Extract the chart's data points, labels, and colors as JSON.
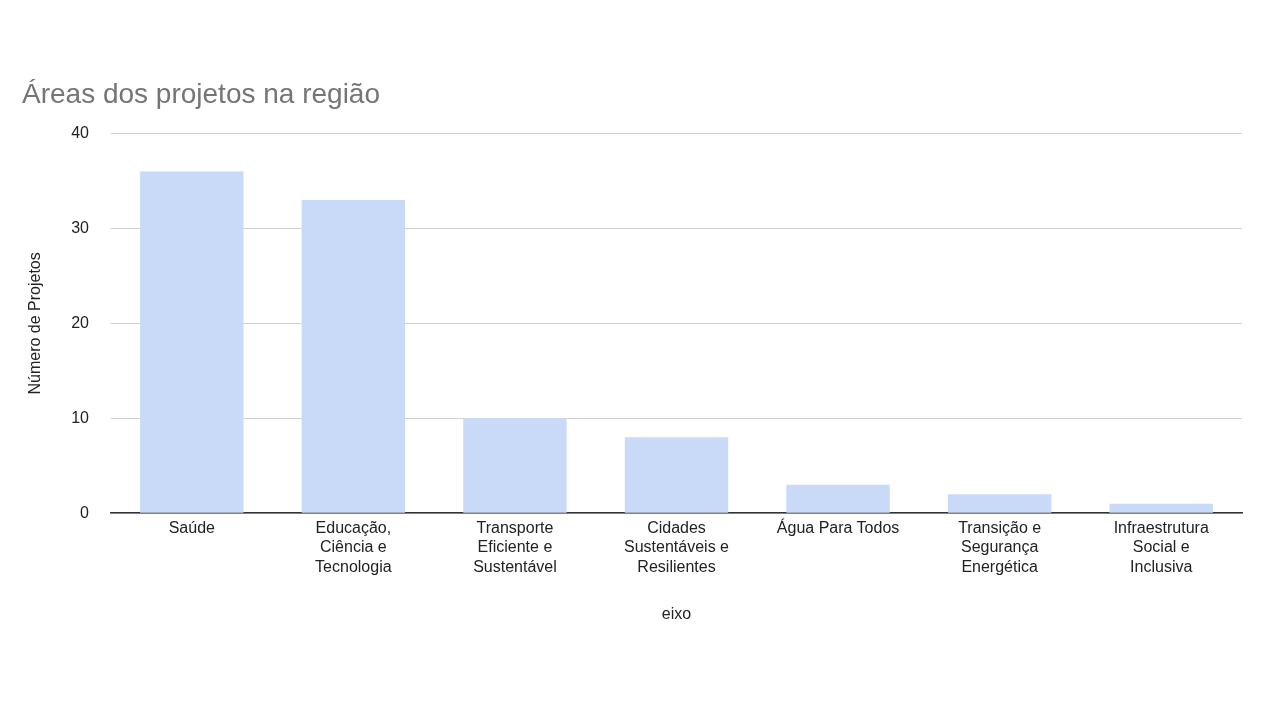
{
  "chart_data": {
    "type": "bar",
    "title": "Áreas dos projetos na região",
    "xlabel": "eixo",
    "ylabel": "Número de Projetos",
    "categories": [
      "Saúde",
      "Educação, Ciência e Tecnologia",
      "Transporte Eficiente e Sustentável",
      "Cidades Sustentáveis e Resilientes",
      "Água Para Todos",
      "Transição e Segurança Energética",
      "Infraestrutura Social e Inclusiva"
    ],
    "values": [
      36,
      33,
      10,
      8,
      3,
      2,
      1
    ],
    "color": "#c9daf8",
    "ylim": [
      0,
      40
    ],
    "yticks": [
      0,
      10,
      20,
      30,
      40
    ],
    "grid": "y",
    "legend": false
  }
}
